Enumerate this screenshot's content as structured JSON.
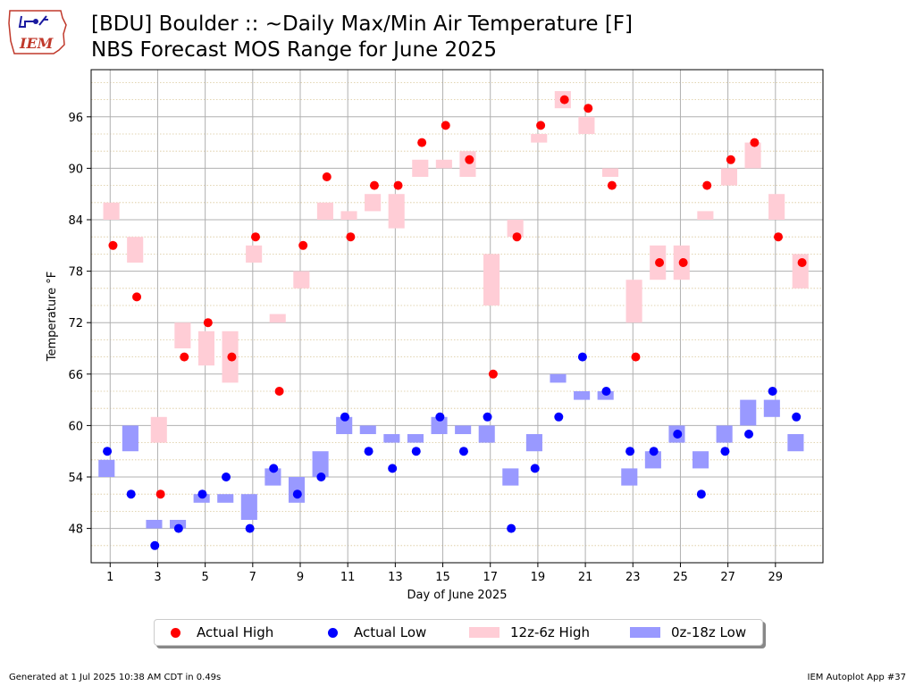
{
  "header": {
    "logo_text": "IEM",
    "title_line1": "[BDU] Boulder :: ~Daily Max/Min Air Temperature [F]",
    "title_line2": "NBS Forecast MOS Range for June 2025"
  },
  "colors": {
    "actual_high": "#ff0000",
    "actual_low": "#0000ff",
    "forecast_high": "#ffcdd6",
    "forecast_low": "#9999ff",
    "grid_major": "#b0b0b0",
    "grid_minor": "#d9c79a"
  },
  "legend": {
    "actual_high": "Actual High",
    "actual_low": "Actual Low",
    "range_high": "12z-6z High",
    "range_low": "0z-18z Low"
  },
  "footer": {
    "generated": "Generated at 1 Jul 2025 10:38 AM CDT in 0.49s",
    "app": "IEM Autoplot App #37"
  },
  "chart_data": {
    "type": "scatter",
    "xlabel": "Day of June 2025",
    "ylabel": "Temperature °F",
    "xlim": [
      0.2,
      31.0
    ],
    "ylim": [
      44,
      101.5
    ],
    "x_ticks": [
      1,
      3,
      5,
      7,
      9,
      11,
      13,
      15,
      17,
      19,
      21,
      23,
      25,
      27,
      29
    ],
    "y_ticks": [
      48,
      54,
      60,
      66,
      72,
      78,
      84,
      90,
      96
    ],
    "minor_y_step": 2,
    "grid": true,
    "legend_position": "bottom-center",
    "series": [
      {
        "name": "Actual High",
        "type": "scatter",
        "x": [
          1,
          2,
          3,
          4,
          5,
          6,
          7,
          8,
          9,
          10,
          11,
          12,
          13,
          14,
          15,
          16,
          17,
          18,
          19,
          20,
          21,
          22,
          23,
          24,
          25,
          26,
          27,
          28,
          29,
          30
        ],
        "y": [
          81,
          75,
          52,
          68,
          72,
          68,
          82,
          64,
          81,
          89,
          82,
          88,
          88,
          93,
          95,
          91,
          66,
          82,
          95,
          98,
          97,
          88,
          68,
          79,
          79,
          88,
          91,
          93,
          82,
          79
        ]
      },
      {
        "name": "Actual Low",
        "type": "scatter",
        "x": [
          1,
          2,
          3,
          4,
          5,
          6,
          7,
          8,
          9,
          10,
          11,
          12,
          13,
          14,
          15,
          16,
          17,
          18,
          19,
          20,
          21,
          22,
          23,
          24,
          25,
          26,
          27,
          28,
          29,
          30
        ],
        "y": [
          57,
          52,
          46,
          48,
          52,
          54,
          48,
          55,
          52,
          54,
          61,
          57,
          55,
          57,
          61,
          57,
          61,
          48,
          55,
          61,
          68,
          64,
          57,
          57,
          59,
          52,
          57,
          59,
          64,
          61
        ]
      },
      {
        "name": "12z-6z High",
        "type": "range",
        "x": [
          1,
          2,
          3,
          4,
          5,
          6,
          7,
          8,
          9,
          10,
          11,
          12,
          13,
          14,
          15,
          16,
          17,
          18,
          19,
          20,
          21,
          22,
          23,
          24,
          25,
          26,
          27,
          28,
          29,
          30
        ],
        "low": [
          84,
          79,
          58,
          69,
          67,
          65,
          79,
          72,
          76,
          84,
          84,
          85,
          83,
          89,
          90,
          89,
          74,
          82,
          93,
          97,
          94,
          89,
          72,
          77,
          77,
          84,
          88,
          90,
          84,
          76
        ],
        "high": [
          86,
          82,
          61,
          72,
          71,
          71,
          81,
          73,
          78,
          86,
          85,
          87,
          87,
          91,
          91,
          92,
          80,
          84,
          94,
          99,
          96,
          90,
          77,
          81,
          81,
          85,
          90,
          93,
          87,
          80
        ]
      },
      {
        "name": "0z-18z Low",
        "type": "range",
        "x": [
          1,
          2,
          3,
          4,
          5,
          6,
          7,
          8,
          9,
          10,
          11,
          12,
          13,
          14,
          15,
          16,
          17,
          18,
          19,
          20,
          21,
          22,
          23,
          24,
          25,
          26,
          27,
          28,
          29,
          30
        ],
        "low": [
          54,
          57,
          48,
          48,
          51,
          51,
          49,
          53,
          51,
          54,
          59,
          59,
          58,
          58,
          59,
          59,
          58,
          53,
          57,
          65,
          63,
          63,
          53,
          55,
          58,
          55,
          58,
          60,
          61,
          57
        ],
        "high": [
          56,
          60,
          49,
          49,
          52,
          52,
          52,
          55,
          54,
          57,
          61,
          60,
          59,
          59,
          61,
          60,
          60,
          55,
          59,
          66,
          64,
          64,
          55,
          57,
          60,
          57,
          60,
          63,
          63,
          59
        ]
      }
    ]
  }
}
